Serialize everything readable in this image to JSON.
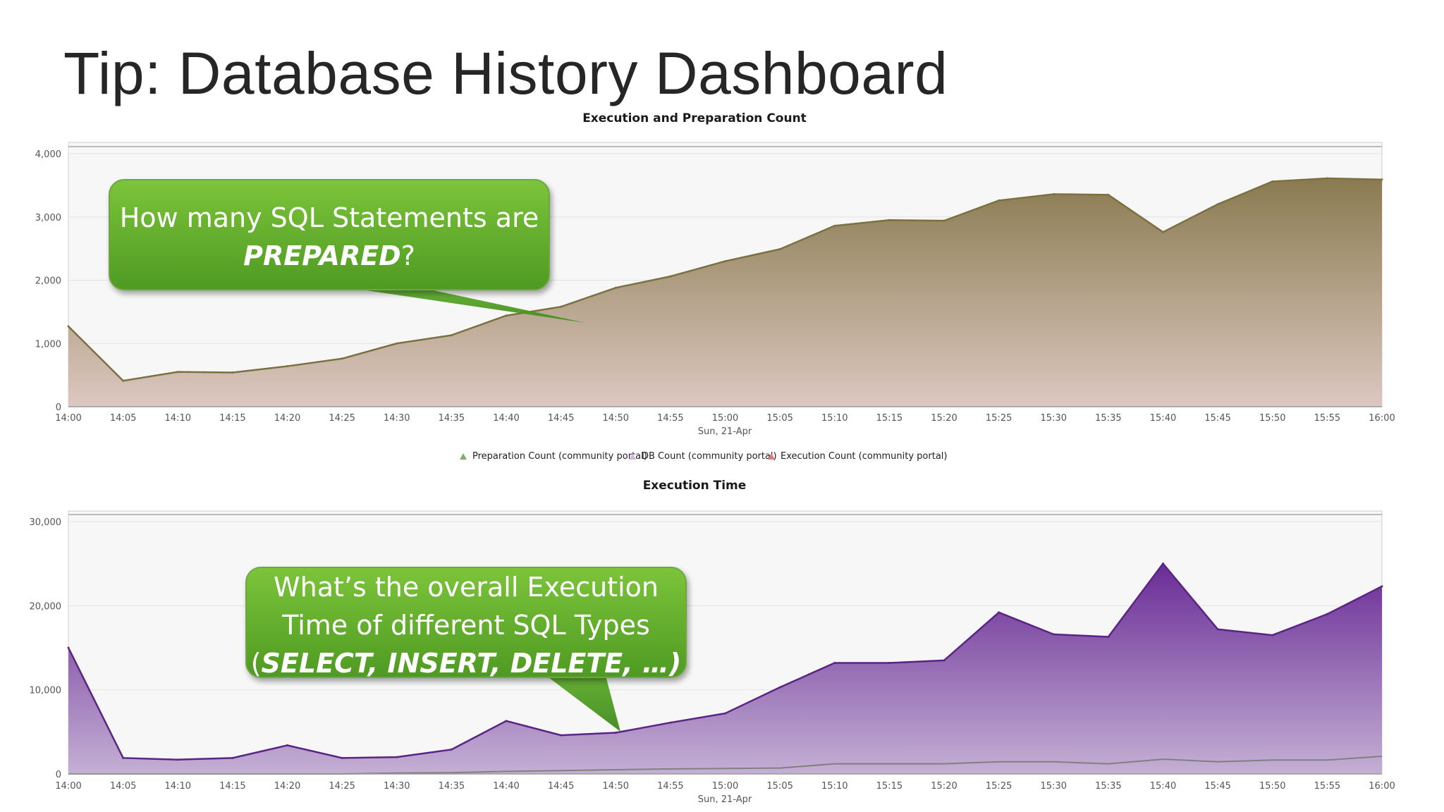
{
  "slide": {
    "title": "Tip: Database History Dashboard"
  },
  "callouts": [
    {
      "line1": "How many SQL Statements are",
      "bold": "PREPARED",
      "tail": "?"
    },
    {
      "line1": "What’s the overall Execution",
      "line2": "Time of different SQL Types",
      "open": "(",
      "bold": "SELECT, INSERT, DELETE, …)"
    }
  ],
  "legend": {
    "items": [
      {
        "label": "Preparation Count (community portal)",
        "color": "#7fae6a"
      },
      {
        "label": "DB Count (community portal)",
        "color": "#d6b4db"
      },
      {
        "label": "Execution Count (community portal)",
        "color": "#e07a7a"
      }
    ]
  },
  "chart_data": [
    {
      "type": "area",
      "title": "Execution and Preparation Count",
      "date_label": "Sun, 21-Apr",
      "x": [
        "14:00",
        "14:05",
        "14:10",
        "14:15",
        "14:20",
        "14:25",
        "14:30",
        "14:35",
        "14:40",
        "14:45",
        "14:50",
        "14:55",
        "15:00",
        "15:05",
        "15:10",
        "15:15",
        "15:20",
        "15:25",
        "15:30",
        "15:35",
        "15:40",
        "15:45",
        "15:50",
        "15:55",
        "16:00"
      ],
      "ylim": [
        0,
        4000
      ],
      "yticks": [
        0,
        1000,
        2000,
        3000,
        4000
      ],
      "ytick_labels": [
        "0",
        "1,000",
        "2,000",
        "3,000",
        "4,000"
      ],
      "grid": true,
      "fill_top": "#8a7a50",
      "fill_bottom": "#dcc8c0",
      "line_color": "#7b7040",
      "series": [
        {
          "values": [
            1270,
            410,
            550,
            540,
            640,
            760,
            1000,
            1130,
            1440,
            1580,
            1880,
            2060,
            2300,
            2490,
            2860,
            2950,
            2940,
            3260,
            3360,
            3350,
            2760,
            3200,
            3560,
            3610,
            3590
          ]
        }
      ]
    },
    {
      "type": "area",
      "title": "Execution Time",
      "date_label": "Sun, 21-Apr",
      "x": [
        "14:00",
        "14:05",
        "14:10",
        "14:15",
        "14:20",
        "14:25",
        "14:30",
        "14:35",
        "14:40",
        "14:45",
        "14:50",
        "14:55",
        "15:00",
        "15:05",
        "15:10",
        "15:15",
        "15:20",
        "15:25",
        "15:30",
        "15:35",
        "15:40",
        "15:45",
        "15:50",
        "15:55",
        "16:00"
      ],
      "ylim": [
        0,
        30000
      ],
      "yticks": [
        0,
        10000,
        20000,
        30000
      ],
      "ytick_labels": [
        "0",
        "10,000",
        "20,000",
        "30,000"
      ],
      "grid": true,
      "fill_top": "#6a2c96",
      "fill_bottom": "#c4b0d4",
      "line_color": "#5a2486",
      "secondary_line_color": "#808080",
      "series": [
        {
          "values": [
            15000,
            1900,
            1700,
            1900,
            3400,
            1900,
            2000,
            2900,
            6300,
            4600,
            4900,
            6100,
            7200,
            10300,
            13200,
            13200,
            13500,
            19200,
            16600,
            16300,
            25000,
            17200,
            16500,
            19000,
            22300
          ]
        },
        {
          "values": [
            0,
            0,
            0,
            0,
            0,
            0,
            100,
            150,
            300,
            400,
            500,
            600,
            650,
            700,
            1200,
            1200,
            1200,
            1450,
            1450,
            1200,
            1750,
            1450,
            1650,
            1650,
            2100
          ]
        }
      ]
    }
  ]
}
